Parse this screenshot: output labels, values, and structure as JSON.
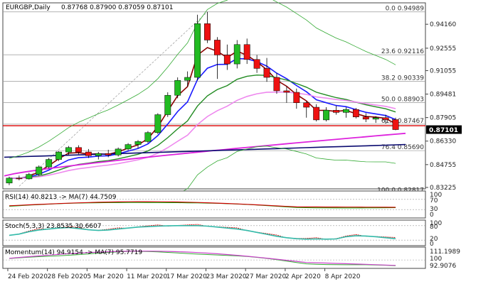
{
  "header": {
    "symbol": "EURGBP,Daily",
    "ohlc": "0.87768 0.87900 0.87059 0.87101"
  },
  "main_axis": {
    "ticks": [
      "0.94160",
      "0.92555",
      "0.91055",
      "0.89481",
      "0.87905",
      "0.86330",
      "0.84755",
      "0.83225"
    ],
    "current_price": "0.87101"
  },
  "fib_levels": [
    {
      "label": "0.0 0.94989",
      "price": 0.94989
    },
    {
      "label": "23.6 0.92116",
      "price": 0.92116
    },
    {
      "label": "38.2 0.90339",
      "price": 0.90339
    },
    {
      "label": "50.0 0.88903",
      "price": 0.88903
    },
    {
      "label": "61.8 0.87467",
      "price": 0.87467
    },
    {
      "label": "76.4 0.85690",
      "price": 0.8569
    },
    {
      "label": "100.0 0.82817",
      "price": 0.82817
    }
  ],
  "rsi_panel": {
    "title": "RSI(14) 40.8213 -> MA(7) 44.7509",
    "ticks": [
      "100",
      "70",
      "30",
      "0"
    ]
  },
  "stoch_panel": {
    "title": "Stoch(5,3,3) 23.8535 30.6607",
    "ticks": [
      "100",
      "80",
      "20",
      "0"
    ]
  },
  "momentum_panel": {
    "title": "Momentum(14) 94.9154 -> MA(7) 95.7719",
    "ticks": [
      "111.1989",
      "100",
      "92.9076"
    ]
  },
  "x_axis": [
    "24 Feb 2020",
    "28 Feb 2020",
    "5 Mar 2020",
    "11 Mar 2020",
    "17 Mar 2020",
    "23 Mar 2020",
    "27 Mar 2020",
    "2 Apr 2020",
    "8 Apr 2020"
  ],
  "colors": {
    "bull": "#22bb22",
    "bear": "#ee1111",
    "ma_darkred": "#8b0000",
    "ma_blue": "#1a1aff",
    "ma_green": "#228b22",
    "ma_pink": "#ee88ee",
    "ma_magenta": "#dd22dd",
    "ma_navy": "#0a0a70",
    "bollinger": "#33aa33",
    "red_level": "#dd0000",
    "rsi_line": "#cc0000",
    "rsi_ma": "#00aa00",
    "stoch_main": "#33bbaa",
    "stoch_signal": "#cc0000",
    "mom_line": "#cc44cc",
    "mom_ma": "#33aa33"
  },
  "chart_data": {
    "type": "candlestick",
    "candles": [
      {
        "o": 0.8352,
        "h": 0.8395,
        "l": 0.8338,
        "c": 0.8385
      },
      {
        "o": 0.8385,
        "h": 0.8402,
        "l": 0.837,
        "c": 0.838
      },
      {
        "o": 0.838,
        "h": 0.842,
        "l": 0.8375,
        "c": 0.841
      },
      {
        "o": 0.841,
        "h": 0.847,
        "l": 0.84,
        "c": 0.846
      },
      {
        "o": 0.846,
        "h": 0.852,
        "l": 0.845,
        "c": 0.851
      },
      {
        "o": 0.851,
        "h": 0.8565,
        "l": 0.85,
        "c": 0.856
      },
      {
        "o": 0.856,
        "h": 0.86,
        "l": 0.854,
        "c": 0.859
      },
      {
        "o": 0.859,
        "h": 0.8605,
        "l": 0.8545,
        "c": 0.856
      },
      {
        "o": 0.856,
        "h": 0.858,
        "l": 0.852,
        "c": 0.8535
      },
      {
        "o": 0.8535,
        "h": 0.856,
        "l": 0.851,
        "c": 0.855
      },
      {
        "o": 0.855,
        "h": 0.8575,
        "l": 0.8525,
        "c": 0.854
      },
      {
        "o": 0.854,
        "h": 0.859,
        "l": 0.853,
        "c": 0.858
      },
      {
        "o": 0.858,
        "h": 0.862,
        "l": 0.857,
        "c": 0.861
      },
      {
        "o": 0.861,
        "h": 0.864,
        "l": 0.8585,
        "c": 0.863
      },
      {
        "o": 0.863,
        "h": 0.87,
        "l": 0.862,
        "c": 0.869
      },
      {
        "o": 0.869,
        "h": 0.882,
        "l": 0.868,
        "c": 0.881
      },
      {
        "o": 0.881,
        "h": 0.896,
        "l": 0.8795,
        "c": 0.894
      },
      {
        "o": 0.894,
        "h": 0.906,
        "l": 0.892,
        "c": 0.904
      },
      {
        "o": 0.904,
        "h": 0.91,
        "l": 0.9,
        "c": 0.906
      },
      {
        "o": 0.906,
        "h": 0.948,
        "l": 0.904,
        "c": 0.942
      },
      {
        "o": 0.942,
        "h": 0.9499,
        "l": 0.929,
        "c": 0.931
      },
      {
        "o": 0.931,
        "h": 0.933,
        "l": 0.905,
        "c": 0.921
      },
      {
        "o": 0.921,
        "h": 0.928,
        "l": 0.911,
        "c": 0.915
      },
      {
        "o": 0.915,
        "h": 0.931,
        "l": 0.912,
        "c": 0.928
      },
      {
        "o": 0.928,
        "h": 0.932,
        "l": 0.915,
        "c": 0.918
      },
      {
        "o": 0.918,
        "h": 0.921,
        "l": 0.909,
        "c": 0.912
      },
      {
        "o": 0.912,
        "h": 0.919,
        "l": 0.903,
        "c": 0.906
      },
      {
        "o": 0.906,
        "h": 0.909,
        "l": 0.895,
        "c": 0.897
      },
      {
        "o": 0.897,
        "h": 0.9,
        "l": 0.889,
        "c": 0.896
      },
      {
        "o": 0.896,
        "h": 0.8985,
        "l": 0.885,
        "c": 0.889
      },
      {
        "o": 0.889,
        "h": 0.89,
        "l": 0.879,
        "c": 0.886
      },
      {
        "o": 0.886,
        "h": 0.888,
        "l": 0.8765,
        "c": 0.8775
      },
      {
        "o": 0.8775,
        "h": 0.886,
        "l": 0.8765,
        "c": 0.884
      },
      {
        "o": 0.884,
        "h": 0.887,
        "l": 0.881,
        "c": 0.8825
      },
      {
        "o": 0.8825,
        "h": 0.886,
        "l": 0.879,
        "c": 0.8845
      },
      {
        "o": 0.8845,
        "h": 0.8855,
        "l": 0.8785,
        "c": 0.8795
      },
      {
        "o": 0.8795,
        "h": 0.882,
        "l": 0.876,
        "c": 0.878
      },
      {
        "o": 0.878,
        "h": 0.88,
        "l": 0.8755,
        "c": 0.879
      },
      {
        "o": 0.879,
        "h": 0.881,
        "l": 0.875,
        "c": 0.8777
      },
      {
        "o": 0.8777,
        "h": 0.879,
        "l": 0.8706,
        "c": 0.871
      }
    ],
    "ylim": [
      0.83225,
      0.955
    ]
  }
}
